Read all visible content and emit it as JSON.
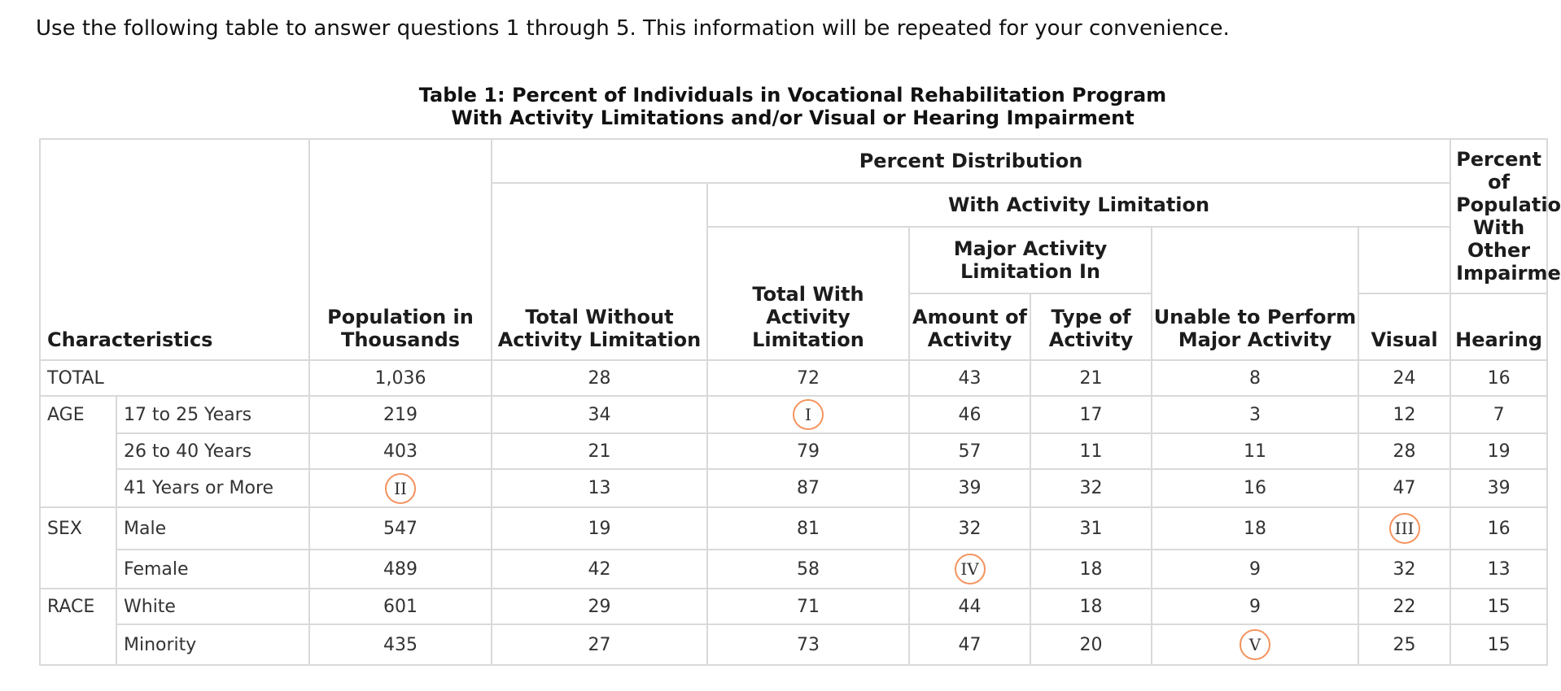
{
  "intro": "Use the following table to answer questions 1 through 5. This information will be repeated for your convenience.",
  "caption": {
    "line1": "Table 1: Percent of Individuals in Vocational Rehabilitation Program",
    "line2": "With Activity Limitations and/or Visual or Hearing Impairment"
  },
  "headers": {
    "characteristics": "Characteristics",
    "population": "Population in Thousands",
    "percent_distribution": "Percent Distribution",
    "total_without": "Total Without Activity Limitation",
    "with_activity_limitation": "With Activity Limitation",
    "total_with": "Total With Activity Limitation",
    "major_activity": "Major Activity Limitation In",
    "amount": "Amount of Activity",
    "type": "Type of Activity",
    "unable": "Unable to Perform Major Activity",
    "other_impairment": "Percent of Population With Other Impairment",
    "visual": "Visual",
    "hearing": "Hearing"
  },
  "rows": {
    "total": {
      "group": "TOTAL",
      "population": "1,036",
      "without": "28",
      "total_with": "72",
      "amount": "43",
      "type": "21",
      "unable": "8",
      "visual": "24",
      "hearing": "16"
    },
    "age1": {
      "group": "AGE",
      "label": "17 to 25 Years",
      "population": "219",
      "without": "34",
      "total_with": "I",
      "amount": "46",
      "type": "17",
      "unable": "3",
      "visual": "12",
      "hearing": "7"
    },
    "age2": {
      "label": "26 to 40 Years",
      "population": "403",
      "without": "21",
      "total_with": "79",
      "amount": "57",
      "type": "11",
      "unable": "11",
      "visual": "28",
      "hearing": "19"
    },
    "age3": {
      "label": "41 Years or More",
      "population": "II",
      "without": "13",
      "total_with": "87",
      "amount": "39",
      "type": "32",
      "unable": "16",
      "visual": "47",
      "hearing": "39"
    },
    "male": {
      "group": "SEX",
      "label": "Male",
      "population": "547",
      "without": "19",
      "total_with": "81",
      "amount": "32",
      "type": "31",
      "unable": "18",
      "visual": "III",
      "hearing": "16"
    },
    "female": {
      "label": "Female",
      "population": "489",
      "without": "42",
      "total_with": "58",
      "amount": "IV",
      "type": "18",
      "unable": "9",
      "visual": "32",
      "hearing": "13"
    },
    "white": {
      "group": "RACE",
      "label": "White",
      "population": "601",
      "without": "29",
      "total_with": "71",
      "amount": "44",
      "type": "18",
      "unable": "9",
      "visual": "22",
      "hearing": "15"
    },
    "minority": {
      "label": "Minority",
      "population": "435",
      "without": "27",
      "total_with": "73",
      "amount": "47",
      "type": "20",
      "unable": "V",
      "visual": "25",
      "hearing": "15"
    }
  },
  "colors": {
    "circle_marker": "#f4935e",
    "grid": "#d9d9d9"
  }
}
